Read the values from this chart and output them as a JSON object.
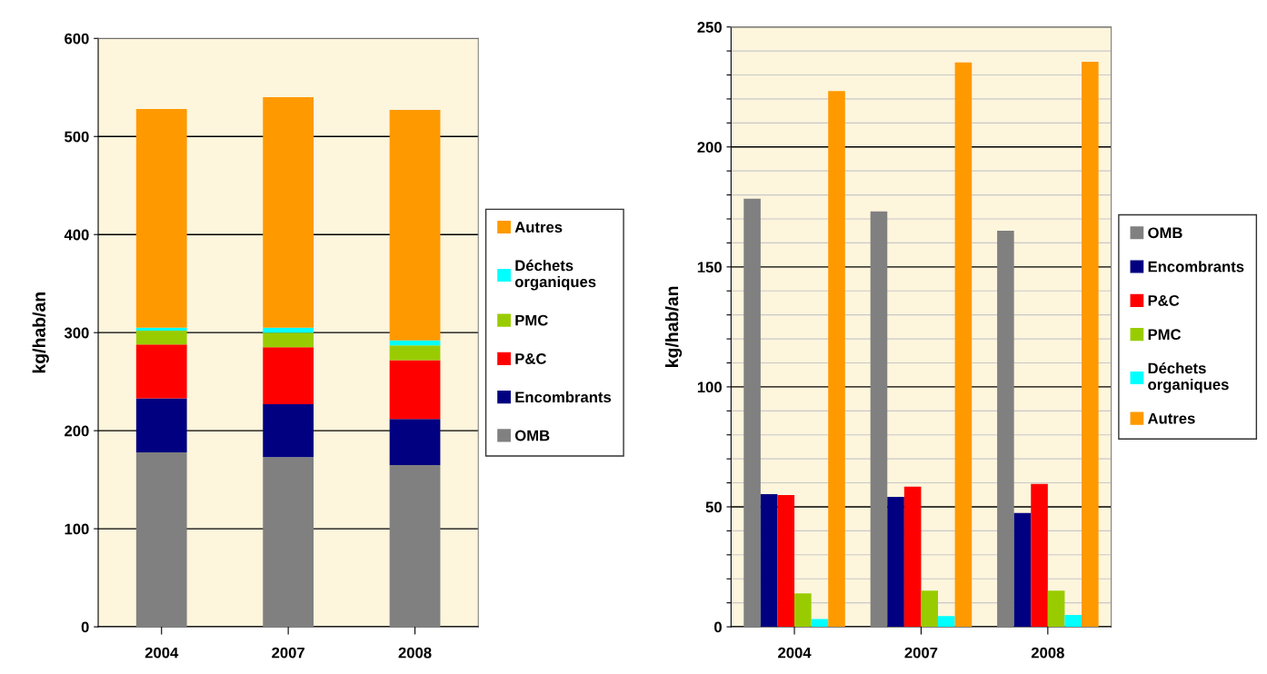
{
  "chart_data": [
    {
      "type": "bar",
      "stacked": true,
      "ylabel": "kg/hab/an",
      "categories": [
        "2004",
        "2007",
        "2008"
      ],
      "ylim": [
        0,
        600
      ],
      "yticks": [
        0,
        100,
        200,
        300,
        400,
        500,
        600
      ],
      "grid": "y",
      "legend": "right",
      "series": [
        {
          "name": "OMB",
          "color": "#808080",
          "values": [
            178,
            173,
            165
          ]
        },
        {
          "name": "Encombrants",
          "color": "#000080",
          "values": [
            55,
            54,
            47
          ]
        },
        {
          "name": "P&C",
          "color": "#ff0000",
          "values": [
            55,
            58,
            60
          ]
        },
        {
          "name": "PMC",
          "color": "#99cc00",
          "values": [
            14,
            15,
            15
          ]
        },
        {
          "name": "Déchets organiques",
          "color": "#00ffff",
          "values": [
            3,
            5,
            5
          ]
        },
        {
          "name": "Autres",
          "color": "#ff9900",
          "values": [
            223,
            235,
            235
          ]
        }
      ]
    },
    {
      "type": "bar",
      "ylabel": "kg/hab/an",
      "categories": [
        "2004",
        "2007",
        "2008"
      ],
      "ylim": [
        0,
        250
      ],
      "yticks": [
        0,
        {
          "value": 10,
          "label": null
        },
        {
          "value": 20,
          "label": null
        },
        {
          "value": 30,
          "label": null
        },
        {
          "value": 40,
          "label": null
        },
        50,
        {
          "value": 60,
          "label": null
        },
        {
          "value": 70,
          "label": null
        },
        {
          "value": 80,
          "label": null
        },
        {
          "value": 90,
          "label": null
        },
        100,
        {
          "value": 110,
          "label": null
        },
        {
          "value": 120,
          "label": null
        },
        {
          "value": 130,
          "label": null
        },
        {
          "value": 140,
          "label": null
        },
        150,
        {
          "value": 160,
          "label": null
        },
        {
          "value": 170,
          "label": null
        },
        {
          "value": 180,
          "label": null
        },
        {
          "value": 190,
          "label": null
        },
        200,
        {
          "value": 210,
          "label": null
        },
        {
          "value": 220,
          "label": null
        },
        {
          "value": 230,
          "label": null
        },
        {
          "value": 240,
          "label": null
        },
        250
      ],
      "grid": "y",
      "legend": "right",
      "series": [
        {
          "name": "OMB",
          "color": "#808080",
          "values": [
            178.4,
            173.1,
            165.1
          ]
        },
        {
          "name": "Encombrants",
          "color": "#000080",
          "values": [
            55.3,
            54.2,
            47.4
          ]
        },
        {
          "name": "P&C",
          "color": "#ff0000",
          "values": [
            54.9,
            58.4,
            59.6
          ]
        },
        {
          "name": "PMC",
          "color": "#99cc00",
          "values": [
            13.9,
            15.1,
            15.1
          ]
        },
        {
          "name": "Déchets organiques",
          "color": "#00ffff",
          "values": [
            3.2,
            4.5,
            4.9
          ]
        },
        {
          "name": "Autres",
          "color": "#ff9900",
          "values": [
            223.3,
            235.2,
            235.5
          ]
        }
      ]
    }
  ]
}
